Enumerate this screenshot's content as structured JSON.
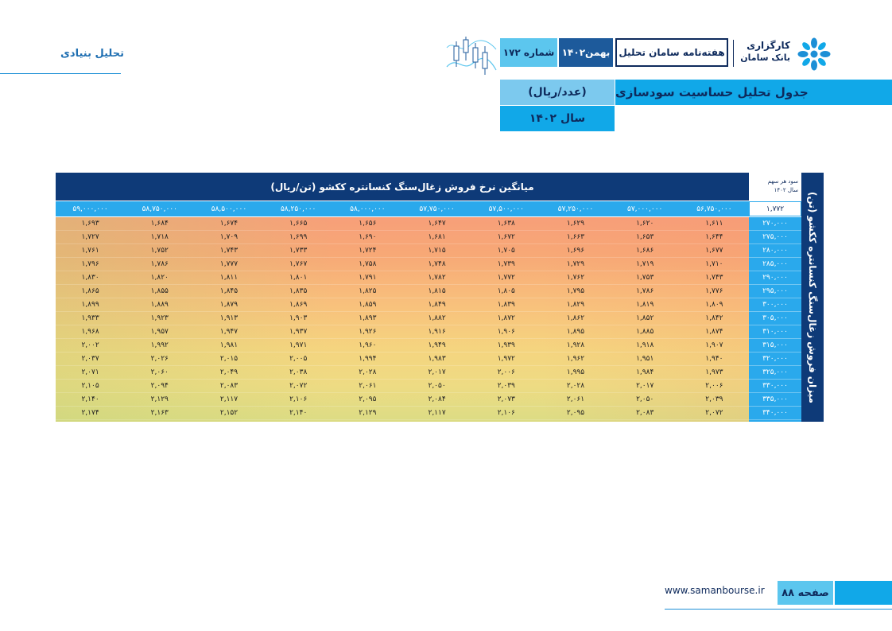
{
  "section": {
    "label": "تحلیل بنیادی"
  },
  "header": {
    "brand_line1": "کارگزاری",
    "brand_line2": "بانک سامان",
    "weekly": "هفته‌نامه سامان تحلیل",
    "month": "بهمن۱۴۰۲",
    "issue": "شماره ۱۷۲"
  },
  "title": {
    "main": "جدول تحلیل حساسیت سودسازی",
    "unit": "(عدد/ریال)",
    "year": "سال ۱۴۰۲"
  },
  "table": {
    "header": "میانگین نرخ فروش زغال‌سنگ کنسانتره ککشو (تن/ریال)",
    "corner_line1": "سود هر سهم",
    "corner_line2": "سال ۱۴۰۲",
    "side_label": "میزان فروش زغال‌سنگ کنسانتره ککشو (تن)",
    "base_value": "۱,۷۷۲",
    "columns": [
      "۵۶,۷۵۰,۰۰۰",
      "۵۷,۰۰۰,۰۰۰",
      "۵۷,۲۵۰,۰۰۰",
      "۵۷,۵۰۰,۰۰۰",
      "۵۷,۷۵۰,۰۰۰",
      "۵۸,۰۰۰,۰۰۰",
      "۵۸,۲۵۰,۰۰۰",
      "۵۸,۵۰۰,۰۰۰",
      "۵۸,۷۵۰,۰۰۰",
      "۵۹,۰۰۰,۰۰۰"
    ],
    "row_labels": [
      "۲۷۰,۰۰۰",
      "۲۷۵,۰۰۰",
      "۲۸۰,۰۰۰",
      "۲۸۵,۰۰۰",
      "۲۹۰,۰۰۰",
      "۲۹۵,۰۰۰",
      "۳۰۰,۰۰۰",
      "۳۰۵,۰۰۰",
      "۳۱۰,۰۰۰",
      "۳۱۵,۰۰۰",
      "۳۲۰,۰۰۰",
      "۳۲۵,۰۰۰",
      "۳۳۰,۰۰۰",
      "۳۳۵,۰۰۰",
      "۳۴۰,۰۰۰"
    ],
    "rows": [
      [
        "۱,۶۱۱",
        "۱,۶۲۰",
        "۱,۶۲۹",
        "۱,۶۳۸",
        "۱,۶۴۷",
        "۱,۶۵۶",
        "۱,۶۶۵",
        "۱,۶۷۴",
        "۱,۶۸۴",
        "۱,۶۹۳"
      ],
      [
        "۱,۶۴۴",
        "۱,۶۵۳",
        "۱,۶۶۳",
        "۱,۶۷۲",
        "۱,۶۸۱",
        "۱,۶۹۰",
        "۱,۶۹۹",
        "۱,۷۰۹",
        "۱,۷۱۸",
        "۱,۷۲۷"
      ],
      [
        "۱,۶۷۷",
        "۱,۶۸۶",
        "۱,۶۹۶",
        "۱,۷۰۵",
        "۱,۷۱۵",
        "۱,۷۲۴",
        "۱,۷۳۳",
        "۱,۷۴۳",
        "۱,۷۵۲",
        "۱,۷۶۱"
      ],
      [
        "۱,۷۱۰",
        "۱,۷۱۹",
        "۱,۷۲۹",
        "۱,۷۳۹",
        "۱,۷۴۸",
        "۱,۷۵۸",
        "۱,۷۶۷",
        "۱,۷۷۷",
        "۱,۷۸۶",
        "۱,۷۹۶"
      ],
      [
        "۱,۷۴۳",
        "۱,۷۵۳",
        "۱,۷۶۲",
        "۱,۷۷۲",
        "۱,۷۸۲",
        "۱,۷۹۱",
        "۱,۸۰۱",
        "۱,۸۱۱",
        "۱,۸۲۰",
        "۱,۸۳۰"
      ],
      [
        "۱,۷۷۶",
        "۱,۷۸۶",
        "۱,۷۹۵",
        "۱,۸۰۵",
        "۱,۸۱۵",
        "۱,۸۲۵",
        "۱,۸۳۵",
        "۱,۸۴۵",
        "۱,۸۵۵",
        "۱,۸۶۵"
      ],
      [
        "۱,۸۰۹",
        "۱,۸۱۹",
        "۱,۸۲۹",
        "۱,۸۳۹",
        "۱,۸۴۹",
        "۱,۸۵۹",
        "۱,۸۶۹",
        "۱,۸۷۹",
        "۱,۸۸۹",
        "۱,۸۹۹"
      ],
      [
        "۱,۸۴۲",
        "۱,۸۵۲",
        "۱,۸۶۲",
        "۱,۸۷۲",
        "۱,۸۸۲",
        "۱,۸۹۳",
        "۱,۹۰۳",
        "۱,۹۱۳",
        "۱,۹۲۳",
        "۱,۹۳۳"
      ],
      [
        "۱,۸۷۴",
        "۱,۸۸۵",
        "۱,۸۹۵",
        "۱,۹۰۶",
        "۱,۹۱۶",
        "۱,۹۲۶",
        "۱,۹۳۷",
        "۱,۹۴۷",
        "۱,۹۵۷",
        "۱,۹۶۸"
      ],
      [
        "۱,۹۰۷",
        "۱,۹۱۸",
        "۱,۹۲۸",
        "۱,۹۳۹",
        "۱,۹۴۹",
        "۱,۹۶۰",
        "۱,۹۷۱",
        "۱,۹۸۱",
        "۱,۹۹۲",
        "۲,۰۰۲"
      ],
      [
        "۱,۹۴۰",
        "۱,۹۵۱",
        "۱,۹۶۲",
        "۱,۹۷۲",
        "۱,۹۸۳",
        "۱,۹۹۴",
        "۲,۰۰۵",
        "۲,۰۱۵",
        "۲,۰۲۶",
        "۲,۰۳۷"
      ],
      [
        "۱,۹۷۳",
        "۱,۹۸۴",
        "۱,۹۹۵",
        "۲,۰۰۶",
        "۲,۰۱۷",
        "۲,۰۲۸",
        "۲,۰۳۸",
        "۲,۰۴۹",
        "۲,۰۶۰",
        "۲,۰۷۱"
      ],
      [
        "۲,۰۰۶",
        "۲,۰۱۷",
        "۲,۰۲۸",
        "۲,۰۳۹",
        "۲,۰۵۰",
        "۲,۰۶۱",
        "۲,۰۷۲",
        "۲,۰۸۳",
        "۲,۰۹۴",
        "۲,۱۰۵"
      ],
      [
        "۲,۰۳۹",
        "۲,۰۵۰",
        "۲,۰۶۱",
        "۲,۰۷۳",
        "۲,۰۸۴",
        "۲,۰۹۵",
        "۲,۱۰۶",
        "۲,۱۱۷",
        "۲,۱۲۹",
        "۲,۱۴۰"
      ],
      [
        "۲,۰۷۲",
        "۲,۰۸۳",
        "۲,۰۹۵",
        "۲,۱۰۶",
        "۲,۱۱۷",
        "۲,۱۲۹",
        "۲,۱۴۰",
        "۲,۱۵۲",
        "۲,۱۶۳",
        "۲,۱۷۴"
      ]
    ]
  },
  "footer": {
    "url": "www.samanbourse.ir",
    "page": "صفحه ۸۸"
  },
  "colors": {
    "navy": "#0e3a78",
    "accent_blue": "#11a8e8",
    "light_blue": "#5cc6ee",
    "heat_high": "#f79f79",
    "heat_low": "#dcdc84"
  },
  "icons": {
    "logo": "flower-logo-icon",
    "candles": "candlestick-icon"
  }
}
